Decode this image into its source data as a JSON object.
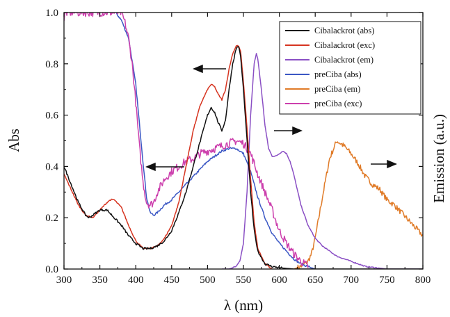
{
  "chart_data": {
    "type": "line",
    "xlabel": "λ (nm)",
    "ylabel": "Abs",
    "ylabel_right": "Emission (a.u.)",
    "xlim": [
      300,
      800
    ],
    "ylim": [
      0,
      1.0
    ],
    "xticks": [
      "300",
      "350",
      "400",
      "450",
      "500",
      "550",
      "600",
      "650",
      "700",
      "750",
      "800"
    ],
    "yticks": [
      "0.0",
      "0.2",
      "0.4",
      "0.6",
      "0.8",
      "1.0"
    ],
    "grid": false,
    "legend_position": "top-right",
    "series": [
      {
        "name": "Cibalackrot (abs)",
        "color": "#111111",
        "x": [
          300,
          310,
          320,
          330,
          335,
          340,
          350,
          360,
          370,
          380,
          390,
          400,
          410,
          420,
          430,
          440,
          450,
          460,
          470,
          480,
          490,
          500,
          505,
          510,
          515,
          520,
          525,
          530,
          535,
          540,
          543,
          546,
          550,
          555,
          560,
          565,
          570,
          580,
          590,
          600,
          620,
          650,
          700,
          750,
          800
        ],
        "y": [
          0.4,
          0.33,
          0.26,
          0.21,
          0.2,
          0.21,
          0.23,
          0.23,
          0.2,
          0.17,
          0.13,
          0.1,
          0.08,
          0.08,
          0.09,
          0.11,
          0.15,
          0.22,
          0.3,
          0.4,
          0.5,
          0.6,
          0.63,
          0.61,
          0.57,
          0.54,
          0.58,
          0.7,
          0.8,
          0.86,
          0.87,
          0.83,
          0.7,
          0.5,
          0.3,
          0.15,
          0.07,
          0.02,
          0.01,
          0.005,
          0.0,
          0.0,
          0.0,
          0.0,
          0.0
        ]
      },
      {
        "name": "Cibalackrot (exc)",
        "color": "#d63420",
        "x": [
          300,
          310,
          320,
          330,
          340,
          350,
          360,
          365,
          370,
          380,
          390,
          400,
          410,
          420,
          430,
          440,
          450,
          460,
          470,
          480,
          490,
          500,
          505,
          510,
          515,
          520,
          525,
          530,
          535,
          540,
          543,
          546,
          550,
          555,
          560,
          565,
          570,
          580,
          590
        ],
        "y": [
          0.37,
          0.31,
          0.25,
          0.21,
          0.2,
          0.23,
          0.26,
          0.27,
          0.27,
          0.24,
          0.17,
          0.11,
          0.08,
          0.08,
          0.09,
          0.12,
          0.17,
          0.26,
          0.4,
          0.54,
          0.64,
          0.7,
          0.72,
          0.71,
          0.68,
          0.66,
          0.7,
          0.78,
          0.84,
          0.87,
          0.87,
          0.85,
          0.73,
          0.55,
          0.35,
          0.18,
          0.08,
          0.02,
          0.0
        ]
      },
      {
        "name": "Cibalackrot (em)",
        "color": "#8a4fc4",
        "x": [
          520,
          530,
          540,
          545,
          550,
          555,
          560,
          565,
          568,
          570,
          575,
          580,
          585,
          590,
          595,
          600,
          605,
          610,
          615,
          620,
          625,
          630,
          640,
          650,
          660,
          680,
          700,
          720,
          750,
          800
        ],
        "y": [
          0.0,
          0.0,
          0.01,
          0.03,
          0.1,
          0.3,
          0.6,
          0.8,
          0.84,
          0.82,
          0.7,
          0.56,
          0.47,
          0.44,
          0.44,
          0.45,
          0.46,
          0.45,
          0.42,
          0.37,
          0.31,
          0.25,
          0.17,
          0.12,
          0.09,
          0.05,
          0.03,
          0.01,
          0.0,
          0.0
        ]
      },
      {
        "name": "preCiba (abs)",
        "color": "#3b57c4",
        "x": [
          372,
          380,
          390,
          400,
          410,
          415,
          420,
          425,
          430,
          440,
          450,
          460,
          470,
          480,
          490,
          500,
          510,
          520,
          530,
          540,
          550,
          560,
          570,
          580,
          590,
          600,
          610,
          620,
          630,
          640,
          650
        ],
        "y": [
          1.0,
          0.97,
          0.9,
          0.72,
          0.42,
          0.28,
          0.22,
          0.21,
          0.22,
          0.25,
          0.27,
          0.3,
          0.33,
          0.36,
          0.39,
          0.42,
          0.44,
          0.46,
          0.47,
          0.47,
          0.45,
          0.38,
          0.28,
          0.2,
          0.14,
          0.1,
          0.07,
          0.04,
          0.02,
          0.01,
          0.0
        ]
      },
      {
        "name": "preCiba (em)",
        "color": "#e07b28",
        "x": [
          620,
          630,
          640,
          645,
          650,
          660,
          670,
          680,
          690,
          700,
          710,
          720,
          730,
          740,
          750,
          760,
          770,
          780,
          790,
          800
        ],
        "y": [
          0.0,
          0.01,
          0.03,
          0.06,
          0.12,
          0.28,
          0.43,
          0.5,
          0.48,
          0.45,
          0.41,
          0.36,
          0.33,
          0.31,
          0.27,
          0.25,
          0.22,
          0.19,
          0.16,
          0.13
        ]
      },
      {
        "name": "preCiba (exc)",
        "color": "#cc3fad",
        "x": [
          300,
          302,
          305,
          380,
          385,
          390,
          395,
          400,
          405,
          410,
          415,
          420,
          425,
          430,
          440,
          450,
          460,
          470,
          480,
          490,
          500,
          510,
          520,
          530,
          540,
          550,
          560,
          570,
          580,
          590,
          600,
          610,
          620,
          630,
          640
        ],
        "y": [
          0.97,
          1.0,
          1.0,
          1.0,
          0.96,
          0.9,
          0.8,
          0.65,
          0.48,
          0.34,
          0.26,
          0.25,
          0.26,
          0.3,
          0.35,
          0.38,
          0.4,
          0.42,
          0.43,
          0.45,
          0.46,
          0.47,
          0.48,
          0.49,
          0.5,
          0.49,
          0.45,
          0.37,
          0.3,
          0.23,
          0.15,
          0.1,
          0.06,
          0.03,
          0.01
        ]
      }
    ]
  }
}
